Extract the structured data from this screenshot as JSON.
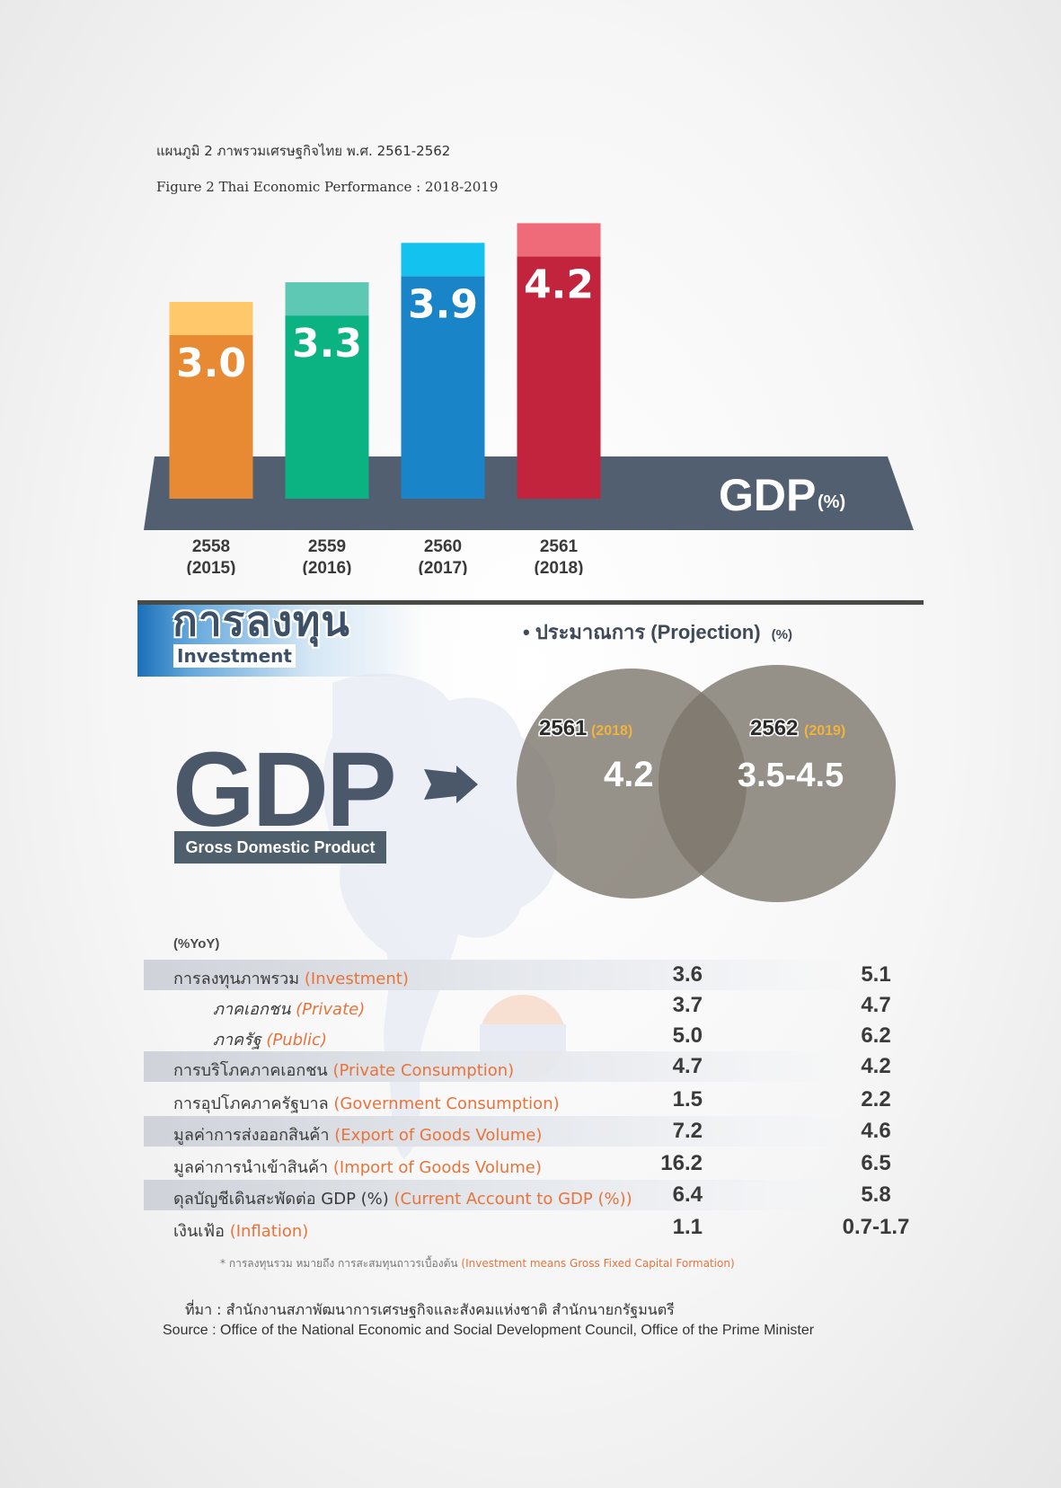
{
  "caption": {
    "thai": "แผนภูมิ 2   ภาพรวมเศรษฐกิจไทย พ.ศ. 2561-2562",
    "english": "Figure   2   Thai Economic Performance : 2018-2019"
  },
  "chart_data": [
    {
      "type": "bar",
      "categories": [
        "2558\n(2015)",
        "2559\n(2016)",
        "2560\n(2017)",
        "2561\n(2018)"
      ],
      "category_year_th": [
        "2558",
        "2559",
        "2560",
        "2561"
      ],
      "category_year_en": [
        "(2015)",
        "(2016)",
        "(2017)",
        "(2018)"
      ],
      "values": [
        3.0,
        3.3,
        3.9,
        4.2
      ],
      "value_labels": [
        "3.0",
        "3.3",
        "3.9",
        "4.2"
      ],
      "colors": [
        "#e88a33",
        "#0bb383",
        "#1a84c8",
        "#c2243d"
      ],
      "top_colors": [
        "#ffc86b",
        "#5fc8b4",
        "#14c2ef",
        "#ef6b79"
      ],
      "platform_label": "GDP",
      "platform_unit": "(%)",
      "platform_color": "#515f70"
    },
    {
      "type": "table",
      "title": "ประมาณการ  (Projection)",
      "unit": "(%)",
      "gdp": {
        "label": "GDP",
        "sublabel": "Gross Domestic Product",
        "col1_year_th": "2561",
        "col1_year_en": "(2018)",
        "col1_value": "4.2",
        "col2_year_th": "2562",
        "col2_year_en": "(2019)",
        "col2_value": "3.5-4.5"
      },
      "row_header": "(%YoY)",
      "rows": [
        {
          "th": "การลงทุนภาพรวม ",
          "en": "(Investment)",
          "v2018": "3.6",
          "v2019": "5.1"
        },
        {
          "th": "ภาคเอกชน ",
          "en": "(Private)",
          "v2018": "3.7",
          "v2019": "4.7"
        },
        {
          "th": "ภาครัฐ ",
          "en": "(Public)",
          "v2018": "5.0",
          "v2019": "6.2"
        },
        {
          "th": "การบริโภคภาคเอกชน ",
          "en": "(Private Consumption)",
          "v2018": "4.7",
          "v2019": "4.2"
        },
        {
          "th": "การอุปโภคภาครัฐบาล ",
          "en": "(Government Consumption)",
          "v2018": "1.5",
          "v2019": "2.2"
        },
        {
          "th": "มูลค่าการส่งออกสินค้า ",
          "en": "(Export of Goods Volume)",
          "v2018": "7.2",
          "v2019": "4.6"
        },
        {
          "th": "มูลค่าการนำเข้าสินค้า ",
          "en": "(Import of Goods Volume)",
          "v2018": "16.2",
          "v2019": "6.5"
        },
        {
          "th": "ดุลบัญชีเดินสะพัดต่อ GDP (%) ",
          "en": "(Current Account to GDP (%))",
          "v2018": "6.4",
          "v2019": "5.8"
        },
        {
          "th": "เงินเฟ้อ ",
          "en": "(Inflation)",
          "v2018": "1.1",
          "v2019": "0.7-1.7"
        }
      ]
    }
  ],
  "investment_badge": {
    "thai": "การลงทุน",
    "english": "Investment"
  },
  "note": {
    "thai": "* การลงทุนรวม หมายถึง การสะสมทุนถาวรเบื้องต้น ",
    "english": "(Investment means Gross Fixed Capital Formation)"
  },
  "source": {
    "thai": "ที่มา  :  สำนักงานสภาพัฒนาการเศรษฐกิจและสังคมแห่งชาติ  สำนักนายกรัฐมนตรี",
    "english": "Source  :  Office of the National Economic and Social Development Council, Office of the Prime Minister"
  }
}
